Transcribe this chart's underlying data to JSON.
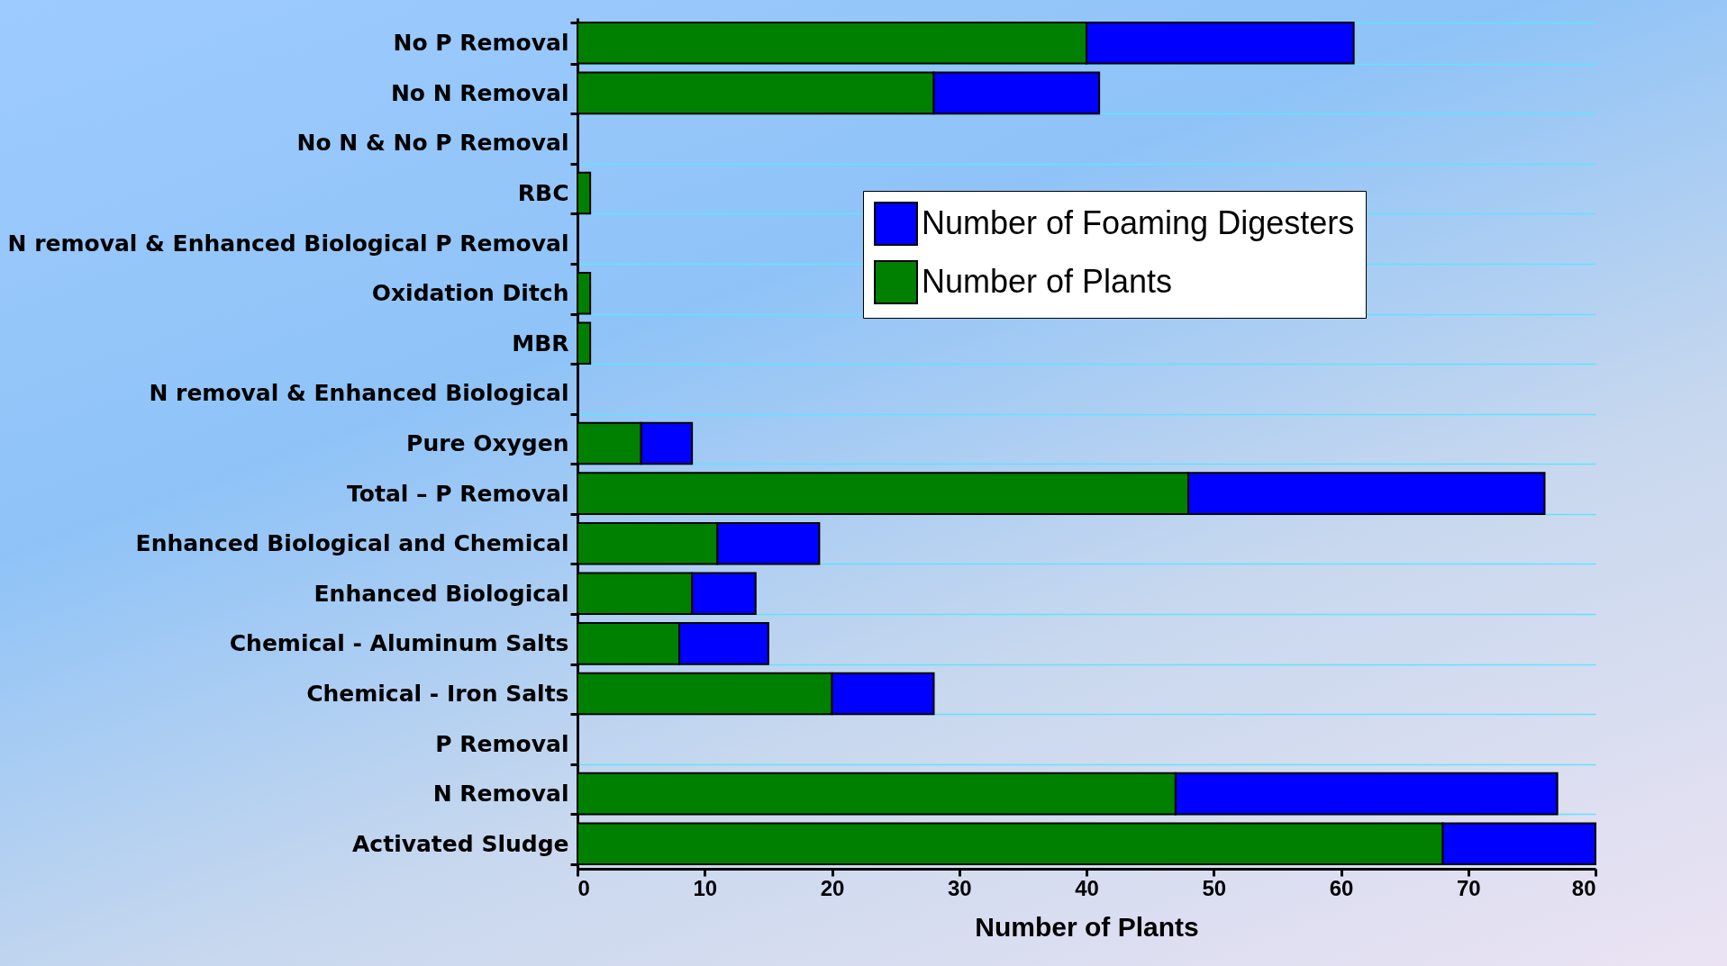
{
  "chart_data": {
    "type": "bar",
    "orientation": "horizontal",
    "stacked": true,
    "xlabel": "Number of Plants",
    "categories": [
      "No P Removal",
      "No N Removal",
      "No N & No P Removal",
      "RBC",
      "N removal & Enhanced Biological P Removal",
      "Oxidation Ditch",
      "MBR",
      "N removal & Enhanced Biological",
      "Pure Oxygen",
      "Total – P Removal",
      "Enhanced Biological and Chemical",
      "Enhanced Biological",
      "Chemical - Aluminum Salts",
      "Chemical - Iron Salts",
      "P Removal",
      "N Removal",
      "Activated Sludge"
    ],
    "series": [
      {
        "name": "Number of Plants",
        "color": "#008000",
        "values": [
          40,
          28,
          null,
          1,
          null,
          1,
          1,
          null,
          5,
          48,
          11,
          9,
          8,
          20,
          null,
          47,
          68
        ]
      },
      {
        "name": "Number of Foaming Digesters",
        "color": "#0000ff",
        "values": [
          21,
          13,
          null,
          null,
          null,
          null,
          null,
          null,
          4,
          28,
          8,
          5,
          7,
          8,
          null,
          30,
          12
        ]
      }
    ],
    "xlim": [
      0,
      80
    ],
    "xticks": [
      0,
      10,
      20,
      30,
      40,
      50,
      60,
      70,
      80
    ],
    "grid": "y",
    "legend": "top right"
  }
}
